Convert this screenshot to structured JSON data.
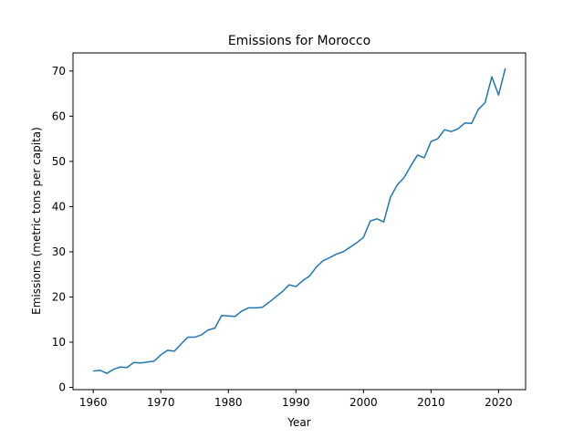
{
  "chart_data": {
    "type": "line",
    "title": "Emissions for Morocco",
    "xlabel": "Year",
    "ylabel": "Emissions (metric tons per capita)",
    "xlim": [
      1957,
      2024
    ],
    "ylim": [
      -0.5,
      74
    ],
    "xticks": [
      1960,
      1970,
      1980,
      1990,
      2000,
      2010,
      2020
    ],
    "yticks": [
      0,
      10,
      20,
      30,
      40,
      50,
      60,
      70
    ],
    "grid": false,
    "line_color": "#1f77b4",
    "x": [
      1960,
      1961,
      1962,
      1963,
      1964,
      1965,
      1966,
      1967,
      1968,
      1969,
      1970,
      1971,
      1972,
      1973,
      1974,
      1975,
      1976,
      1977,
      1978,
      1979,
      1980,
      1981,
      1982,
      1983,
      1984,
      1985,
      1986,
      1987,
      1988,
      1989,
      1990,
      1991,
      1992,
      1993,
      1994,
      1995,
      1996,
      1997,
      1998,
      1999,
      2000,
      2001,
      2002,
      2003,
      2004,
      2005,
      2006,
      2007,
      2008,
      2009,
      2010,
      2011,
      2012,
      2013,
      2014,
      2015,
      2016,
      2017,
      2018,
      2019,
      2020,
      2021
    ],
    "values": [
      3.6,
      3.8,
      3.1,
      4.0,
      4.5,
      4.4,
      5.5,
      5.4,
      5.6,
      5.8,
      7.2,
      8.2,
      8.0,
      9.6,
      11.1,
      11.1,
      11.6,
      12.7,
      13.1,
      15.9,
      15.8,
      15.7,
      16.9,
      17.6,
      17.6,
      17.7,
      18.8,
      20.0,
      21.2,
      22.7,
      22.3,
      23.6,
      24.6,
      26.6,
      28.0,
      28.7,
      29.5,
      30.0,
      31.0,
      32.0,
      33.2,
      36.8,
      37.3,
      36.6,
      42.1,
      44.8,
      46.4,
      49.0,
      51.4,
      50.8,
      54.4,
      55.0,
      57.0,
      56.6,
      57.2,
      58.5,
      58.4,
      61.5,
      63.0,
      68.7,
      64.7,
      70.6
    ]
  }
}
